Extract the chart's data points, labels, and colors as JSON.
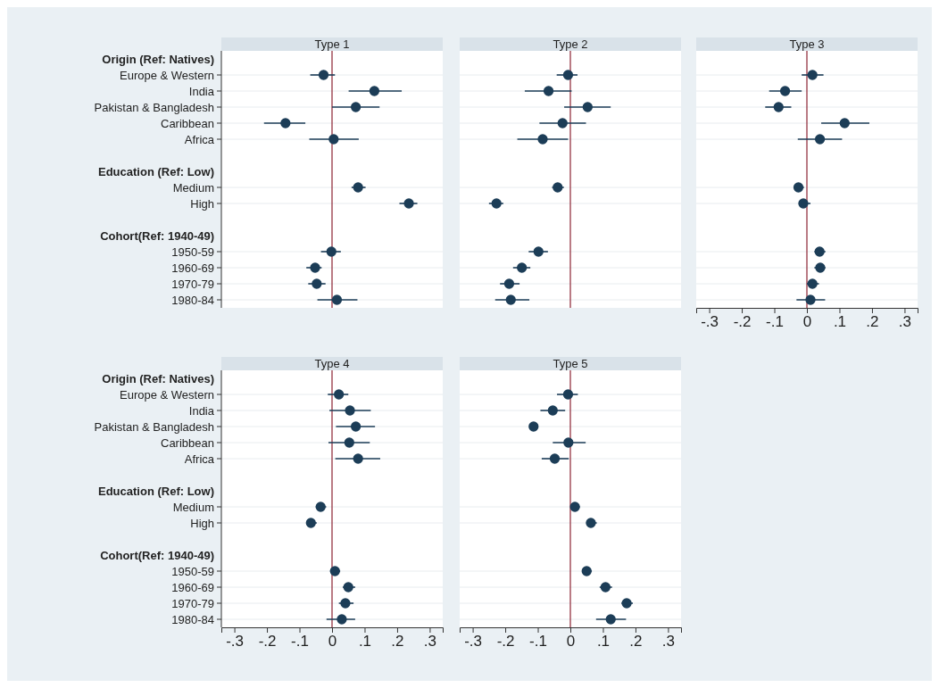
{
  "chart_data": [
    {
      "type": "scatter",
      "title": "Type 1",
      "orientation": "horizontal",
      "marker": "circle",
      "color": "#1c3d57",
      "grid": "y",
      "tick_labels": "y",
      "categories": [
        "Origin (Ref: Natives)",
        "Europe & Western",
        "India",
        "Pakistan & Bangladesh",
        "Caribbean",
        "Africa",
        null,
        "Education (Ref: Low)",
        "Medium",
        "High",
        null,
        "Cohort(Ref: 1940-49)",
        "1950-59",
        "1960-69",
        "1970-79",
        "1980-84"
      ],
      "values": [
        null,
        -0.026,
        0.13,
        0.073,
        -0.143,
        0.005,
        null,
        null,
        0.08,
        0.236,
        null,
        null,
        -0.002,
        -0.052,
        -0.047,
        0.015
      ],
      "errors": [
        null,
        [
          -0.067,
          0.009
        ],
        [
          0.051,
          0.214
        ],
        [
          0.0,
          0.146
        ],
        [
          -0.209,
          -0.082
        ],
        [
          -0.07,
          0.082
        ],
        null,
        null,
        [
          0.06,
          0.103
        ],
        [
          0.207,
          0.262
        ],
        null,
        null,
        [
          -0.034,
          0.027
        ],
        [
          -0.079,
          -0.032
        ],
        [
          -0.073,
          -0.02
        ],
        [
          -0.045,
          0.078
        ]
      ],
      "xlim": [
        -0.34,
        0.34
      ],
      "ref_lines": [
        {
          "axis": "x",
          "value": 0,
          "color": "#8b2232"
        }
      ]
    },
    {
      "type": "scatter",
      "title": "Type 2",
      "orientation": "horizontal",
      "marker": "circle",
      "color": "#1c3d57",
      "grid": "y",
      "tick_labels": false,
      "categories": [
        null,
        null,
        null,
        null,
        null,
        null,
        null,
        null,
        null,
        null,
        null,
        null,
        null,
        null,
        null,
        null
      ],
      "values": [
        null,
        -0.007,
        -0.067,
        0.053,
        -0.024,
        -0.085,
        null,
        null,
        -0.039,
        -0.227,
        null,
        null,
        -0.098,
        -0.149,
        -0.188,
        -0.183
      ],
      "errors": [
        null,
        [
          -0.042,
          0.022
        ],
        [
          -0.14,
          0.004
        ],
        [
          -0.019,
          0.124
        ],
        [
          -0.095,
          0.048
        ],
        [
          -0.163,
          -0.007
        ],
        null,
        null,
        [
          -0.056,
          -0.02
        ],
        [
          -0.25,
          -0.206
        ],
        null,
        null,
        [
          -0.128,
          -0.069
        ],
        [
          -0.176,
          -0.123
        ],
        [
          -0.216,
          -0.156
        ],
        [
          -0.231,
          -0.126
        ]
      ],
      "xlim": [
        -0.34,
        0.34
      ],
      "ref_lines": [
        {
          "axis": "x",
          "value": 0,
          "color": "#8b2232"
        }
      ]
    },
    {
      "type": "scatter",
      "title": "Type 3",
      "orientation": "horizontal",
      "marker": "circle",
      "color": "#1c3d57",
      "grid": "y",
      "tick_labels": "x",
      "xticks": [
        {
          "value": -0.3,
          "label": "-.3"
        },
        {
          "value": -0.2,
          "label": "-.2"
        },
        {
          "value": -0.1,
          "label": "-.1"
        },
        {
          "value": 0,
          "label": "0"
        },
        {
          "value": 0.1,
          "label": ".1"
        },
        {
          "value": 0.2,
          "label": ".2"
        },
        {
          "value": 0.3,
          "label": ".3"
        }
      ],
      "categories": [
        null,
        null,
        null,
        null,
        null,
        null,
        null,
        null,
        null,
        null,
        null,
        null,
        null,
        null,
        null,
        null
      ],
      "values": [
        null,
        0.017,
        -0.067,
        -0.087,
        0.116,
        0.04,
        null,
        null,
        -0.026,
        -0.011,
        null,
        null,
        0.039,
        0.041,
        0.017,
        0.011
      ],
      "errors": [
        null,
        [
          -0.016,
          0.051
        ],
        [
          -0.116,
          -0.016
        ],
        [
          -0.128,
          -0.048
        ],
        [
          0.044,
          0.192
        ],
        [
          -0.028,
          0.108
        ],
        null,
        null,
        [
          -0.037,
          -0.009
        ],
        [
          -0.025,
          0.011
        ],
        null,
        null,
        [
          0.023,
          0.057
        ],
        [
          0.023,
          0.057
        ],
        [
          0.0,
          0.037
        ],
        [
          -0.032,
          0.056
        ]
      ],
      "xlim": [
        -0.34,
        0.34
      ],
      "ref_lines": [
        {
          "axis": "x",
          "value": 0,
          "color": "#8b2232"
        }
      ]
    },
    {
      "type": "scatter",
      "title": "Type 4",
      "orientation": "horizontal",
      "marker": "circle",
      "color": "#1c3d57",
      "grid": "y",
      "xticks": [
        {
          "value": -0.3,
          "label": "-.3"
        },
        {
          "value": -0.2,
          "label": "-.2"
        },
        {
          "value": -0.1,
          "label": "-.1"
        },
        {
          "value": 0,
          "label": "0"
        },
        {
          "value": 0.1,
          "label": ".1"
        },
        {
          "value": 0.2,
          "label": ".2"
        },
        {
          "value": 0.3,
          "label": ".3"
        }
      ],
      "categories": [
        "Origin (Ref: Natives)",
        "Europe & Western",
        "India",
        "Pakistan & Bangladesh",
        "Caribbean",
        "Africa",
        null,
        "Education (Ref: Low)",
        "Medium",
        "High",
        null,
        "Cohort(Ref: 1940-49)",
        "1950-59",
        "1960-69",
        "1970-79",
        "1980-84"
      ],
      "values": [
        null,
        0.021,
        0.055,
        0.073,
        0.053,
        0.08,
        null,
        null,
        -0.035,
        -0.065,
        null,
        null,
        0.009,
        0.05,
        0.041,
        0.03
      ],
      "errors": [
        null,
        [
          -0.013,
          0.05
        ],
        [
          -0.008,
          0.119
        ],
        [
          0.012,
          0.132
        ],
        [
          -0.011,
          0.116
        ],
        [
          0.01,
          0.148
        ],
        null,
        null,
        [
          -0.05,
          -0.018
        ],
        [
          -0.079,
          -0.047
        ],
        null,
        null,
        [
          -0.006,
          0.025
        ],
        [
          0.033,
          0.071
        ],
        [
          0.021,
          0.066
        ],
        [
          -0.017,
          0.071
        ]
      ],
      "xlim": [
        -0.34,
        0.34
      ],
      "ref_lines": [
        {
          "axis": "x",
          "value": 0,
          "color": "#8b2232"
        }
      ]
    },
    {
      "type": "scatter",
      "title": "Type 5",
      "orientation": "horizontal",
      "marker": "circle",
      "color": "#1c3d57",
      "grid": "y",
      "tick_labels": "x",
      "xticks": [
        {
          "value": -0.3,
          "label": "-.3"
        },
        {
          "value": -0.2,
          "label": "-.2"
        },
        {
          "value": -0.1,
          "label": "-.1"
        },
        {
          "value": 0,
          "label": "0"
        },
        {
          "value": 0.1,
          "label": ".1"
        },
        {
          "value": 0.2,
          "label": ".2"
        },
        {
          "value": 0.3,
          "label": ".3"
        }
      ],
      "categories": [
        null,
        null,
        null,
        null,
        null,
        null,
        null,
        null,
        null,
        null,
        null,
        null,
        null,
        null,
        null,
        null
      ],
      "values": [
        null,
        -0.007,
        -0.054,
        -0.113,
        -0.006,
        -0.048,
        null,
        null,
        0.014,
        0.063,
        null,
        null,
        0.05,
        0.108,
        0.173,
        0.124
      ],
      "errors": [
        null,
        [
          -0.041,
          0.023
        ],
        [
          -0.092,
          -0.016
        ],
        [
          -0.125,
          -0.1
        ],
        [
          -0.054,
          0.047
        ],
        [
          -0.088,
          -0.005
        ],
        null,
        null,
        [
          0.0,
          0.029
        ],
        [
          0.049,
          0.081
        ],
        null,
        null,
        [
          0.036,
          0.066
        ],
        [
          0.09,
          0.128
        ],
        [
          0.157,
          0.192
        ],
        [
          0.079,
          0.171
        ]
      ],
      "xlim": [
        -0.34,
        0.34
      ],
      "ref_lines": [
        {
          "axis": "x",
          "value": 0,
          "color": "#8b2232"
        }
      ]
    }
  ]
}
